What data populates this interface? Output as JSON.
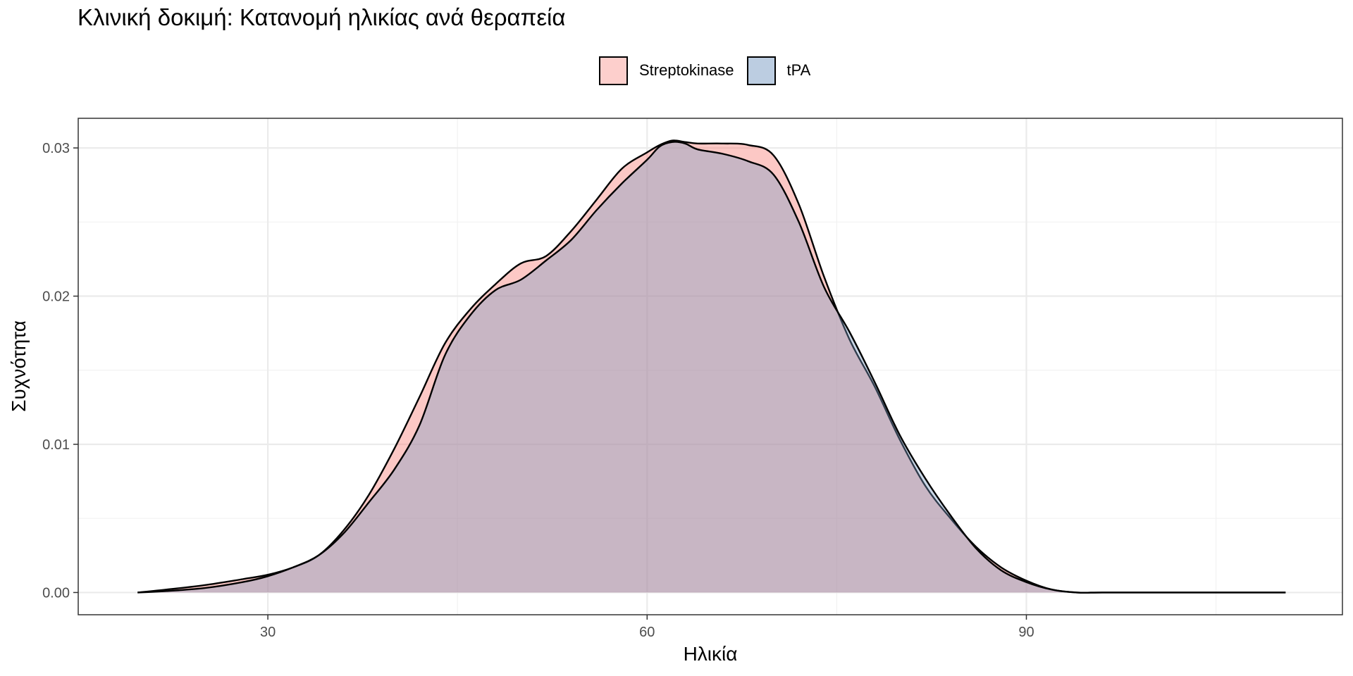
{
  "chart_data": {
    "type": "area",
    "title": "Κλινική δοκιμή: Κατανομή ηλικίας ανά θεραπεία",
    "xlabel": "Ηλικία",
    "ylabel": "Συχνότητα",
    "xlim": [
      15,
      115
    ],
    "ylim": [
      -0.0015,
      0.032
    ],
    "xticks": [
      30,
      60,
      90
    ],
    "xtick_labels": [
      "30",
      "60",
      "90"
    ],
    "yticks": [
      0,
      0.01,
      0.02,
      0.03
    ],
    "ytick_labels": [
      "0.00",
      "0.01",
      "0.02",
      "0.03"
    ],
    "grid": true,
    "legend_position": "top",
    "series": [
      {
        "name": "Streptokinase",
        "fill": "#F8766D",
        "x": [
          19.7,
          22,
          25,
          28,
          30,
          32,
          34,
          36,
          38,
          40,
          42,
          44,
          46,
          48,
          50,
          52,
          54,
          56,
          58,
          60,
          61,
          62,
          63,
          64,
          66,
          68,
          70,
          72,
          74,
          76,
          78,
          80,
          82,
          84,
          86,
          88,
          90,
          92,
          94,
          96,
          100,
          105,
          110.5
        ],
        "y": [
          0.0,
          0.0002,
          0.0005,
          0.0009,
          0.0012,
          0.0017,
          0.0025,
          0.0042,
          0.0066,
          0.0097,
          0.0132,
          0.0168,
          0.0191,
          0.0208,
          0.0222,
          0.0227,
          0.0244,
          0.0265,
          0.0286,
          0.0297,
          0.0302,
          0.0305,
          0.0304,
          0.0303,
          0.0303,
          0.0302,
          0.0295,
          0.0262,
          0.0213,
          0.0171,
          0.0139,
          0.0103,
          0.0072,
          0.005,
          0.0031,
          0.0017,
          0.0008,
          0.0002,
          0.0,
          0.0,
          0.0,
          0.0,
          0.0
        ]
      },
      {
        "name": "tPA",
        "fill": "#7A9CC4",
        "x": [
          19.7,
          22,
          25,
          28,
          30,
          32,
          34,
          36,
          38,
          40,
          42,
          44,
          46,
          48,
          50,
          52,
          54,
          56,
          58,
          60,
          61,
          62,
          63,
          64,
          66,
          68,
          70,
          72,
          74,
          76,
          78,
          80,
          82,
          84,
          86,
          88,
          90,
          92,
          94,
          96,
          100,
          105,
          110.5
        ],
        "y": [
          0.0,
          0.0001,
          0.0003,
          0.0007,
          0.0011,
          0.0017,
          0.0025,
          0.004,
          0.0061,
          0.0083,
          0.0113,
          0.016,
          0.0187,
          0.0204,
          0.0211,
          0.0224,
          0.0238,
          0.0258,
          0.0276,
          0.0292,
          0.0301,
          0.0304,
          0.0303,
          0.0299,
          0.0296,
          0.0291,
          0.0282,
          0.025,
          0.0206,
          0.0176,
          0.0142,
          0.0106,
          0.0077,
          0.0052,
          0.003,
          0.0015,
          0.0007,
          0.0002,
          0.0,
          0.0,
          0.0,
          0.0,
          0.0
        ]
      }
    ]
  },
  "legend": {
    "items": [
      {
        "label": "Streptokinase",
        "color": "#F8766D"
      },
      {
        "label": "tPA",
        "color": "#7A9CC4"
      }
    ]
  }
}
